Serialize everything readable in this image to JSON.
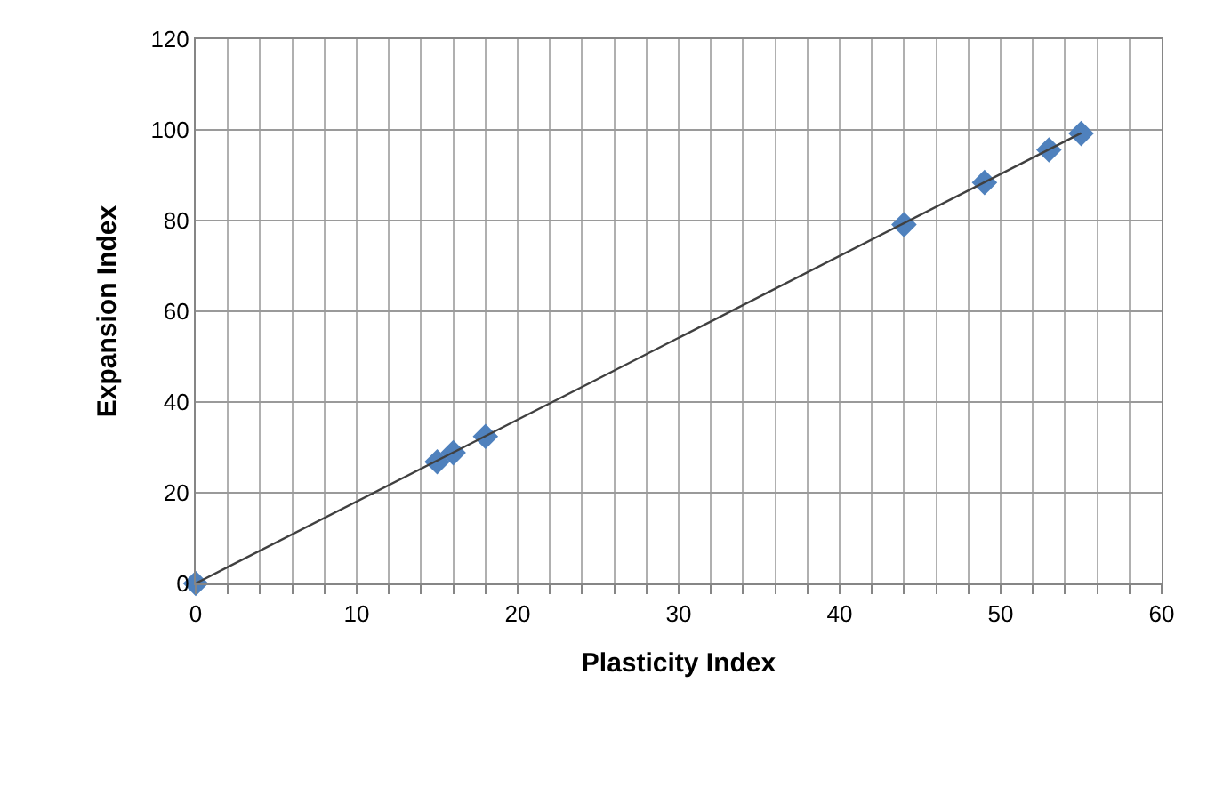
{
  "chart_data": {
    "type": "scatter",
    "xlabel": "Plasticity Index",
    "ylabel": "Expansion Index",
    "marker": "diamond",
    "grid": true,
    "xlim": [
      0,
      60
    ],
    "ylim": [
      0,
      120
    ],
    "xticks": [
      0,
      {
        "value": 2,
        "label": null
      },
      {
        "value": 4,
        "label": null
      },
      {
        "value": 6,
        "label": null
      },
      {
        "value": 8,
        "label": null
      },
      10,
      {
        "value": 12,
        "label": null
      },
      {
        "value": 14,
        "label": null
      },
      {
        "value": 16,
        "label": null
      },
      {
        "value": 18,
        "label": null
      },
      20,
      {
        "value": 22,
        "label": null
      },
      {
        "value": 24,
        "label": null
      },
      {
        "value": 26,
        "label": null
      },
      {
        "value": 28,
        "label": null
      },
      30,
      {
        "value": 32,
        "label": null
      },
      {
        "value": 34,
        "label": null
      },
      {
        "value": 36,
        "label": null
      },
      {
        "value": 38,
        "label": null
      },
      40,
      {
        "value": 42,
        "label": null
      },
      {
        "value": 44,
        "label": null
      },
      {
        "value": 46,
        "label": null
      },
      {
        "value": 48,
        "label": null
      },
      50,
      {
        "value": 52,
        "label": null
      },
      {
        "value": 54,
        "label": null
      },
      {
        "value": 56,
        "label": null
      },
      {
        "value": 58,
        "label": null
      },
      60
    ],
    "yticks": [
      0,
      20,
      40,
      60,
      80,
      100,
      120
    ],
    "series": [
      {
        "color": "#4f81bd",
        "x": [
          0,
          15,
          16,
          18,
          44,
          49,
          53,
          55
        ],
        "values": [
          0,
          26.8,
          28.8,
          32.4,
          79.1,
          88.4,
          95.6,
          99.2
        ]
      },
      {
        "type": "line",
        "color": "#404040",
        "marker": "none",
        "x": [
          0,
          55
        ],
        "values": [
          0,
          99.3
        ]
      }
    ]
  }
}
